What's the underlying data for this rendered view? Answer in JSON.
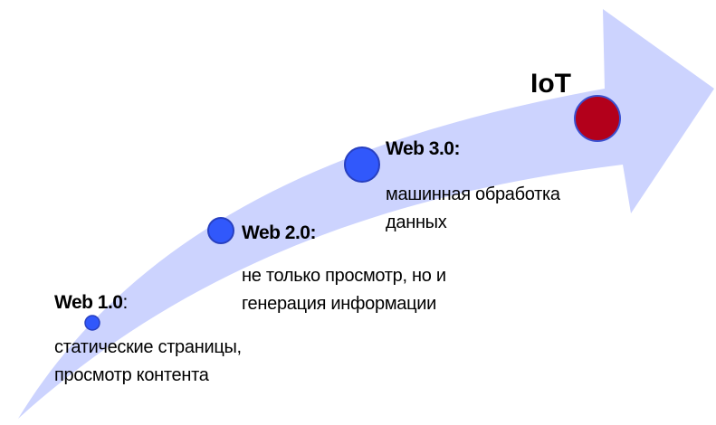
{
  "colors": {
    "arrow": "#ccd3fe",
    "node": "#3158fb",
    "node_border": "#2840c0",
    "iot": "#b3001b"
  },
  "stages": [
    {
      "title": "Web 1.0",
      "colon": ":",
      "lines": [
        "статические страницы,",
        "просмотр контента"
      ]
    },
    {
      "title": "Web 2.0:",
      "lines": [
        "не только просмотр, но и",
        "генерация информации"
      ]
    },
    {
      "title": "Web 3.0:",
      "lines": [
        "машинная обработка",
        "данных"
      ]
    },
    {
      "title": "IoT"
    }
  ]
}
